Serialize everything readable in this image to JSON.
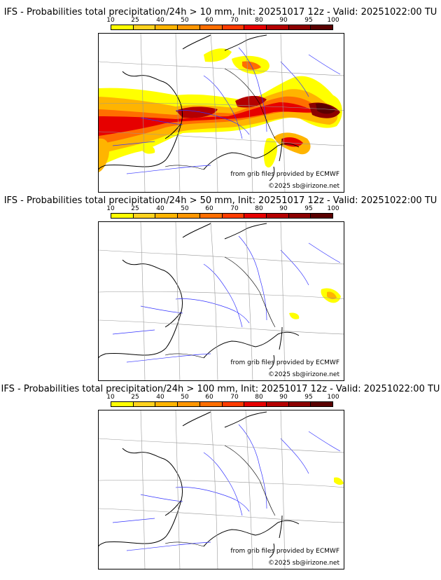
{
  "panels": [
    {
      "title": "IFS - Probabilities total precipitation/24h > 10 mm, Init: 20251017 12z - Valid: 20251022:00 TU",
      "legend_ticks": [
        "10",
        "25",
        "40",
        "50",
        "60",
        "70",
        "80",
        "90",
        "95",
        "100"
      ],
      "source_text": "from grib files provided by ECMWF",
      "copyright": "©2025 sb@irizone.net",
      "coverage": "extensive"
    },
    {
      "title": "IFS - Probabilities total precipitation/24h > 50 mm, Init: 20251017 12z - Valid: 20251022:00 TU",
      "legend_ticks": [
        "10",
        "25",
        "40",
        "50",
        "60",
        "70",
        "80",
        "90",
        "95",
        "100"
      ],
      "source_text": "from grib files provided by ECMWF",
      "copyright": "©2025 sb@irizone.net",
      "coverage": "sparse"
    },
    {
      "title": "IFS - Probabilities total precipitation/24h > 100 mm, Init: 20251017 12z - Valid: 20251022:00 TU",
      "legend_ticks": [
        "10",
        "25",
        "40",
        "50",
        "60",
        "70",
        "80",
        "90",
        "95",
        "100"
      ],
      "source_text": "from grib files provided by ECMWF",
      "copyright": "©2025 sb@irizone.net",
      "coverage": "minimal"
    }
  ],
  "legend_colors": [
    "#ffff00",
    "#ffd21e",
    "#ffb400",
    "#ff9600",
    "#ff6e00",
    "#ff3c00",
    "#e60000",
    "#b40000",
    "#8c0000",
    "#5a0000"
  ]
}
